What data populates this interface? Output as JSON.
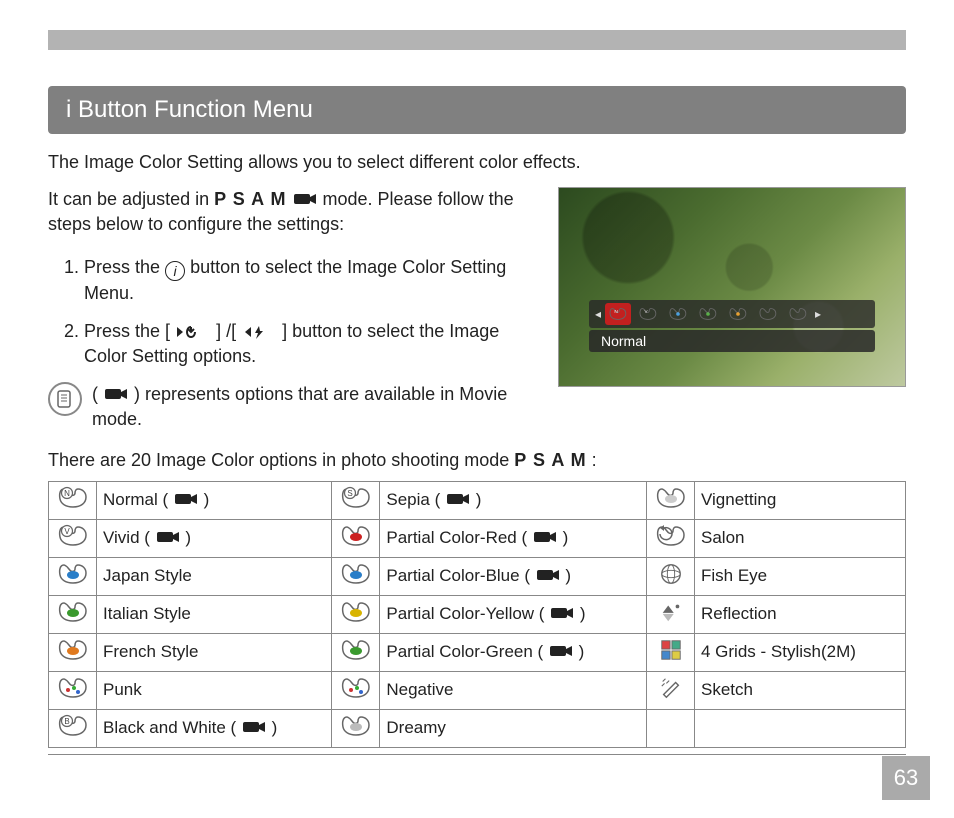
{
  "header": {
    "section_title": "i Button Function Menu"
  },
  "intro": {
    "line": "The Image Color Setting allows you to select different color effects."
  },
  "body": {
    "adjust_pre": "It can be adjusted in ",
    "adjust_modes": "P S A M",
    "adjust_post": " mode. Please follow the steps below to configure the settings:",
    "step1_pre": "Press the ",
    "step1_post": " button to select the Image Color Setting Menu.",
    "step2_pre": "Press the [",
    "step2_mid": "] /[",
    "step2_post": "] button to select the Image Color Setting options.",
    "note_pre": "( ",
    "note_post": " ) represents options that are available in Movie mode."
  },
  "screenshot": {
    "label": "Normal"
  },
  "options_intro": {
    "pre": "There are 20 Image Color options in photo shooting mode ",
    "modes": "P S A M",
    "post": " :"
  },
  "table": {
    "rows": [
      [
        "Normal",
        "Sepia",
        "Vignetting"
      ],
      [
        "Vivid",
        "Partial Color-Red",
        "Salon"
      ],
      [
        "Japan Style",
        "Partial Color-Blue",
        "Fish Eye"
      ],
      [
        "Italian Style",
        "Partial Color-Yellow",
        "Reflection"
      ],
      [
        "French Style",
        "Partial Color-Green",
        "4 Grids - Stylish(2M)"
      ],
      [
        "Punk",
        "Negative",
        "Sketch"
      ],
      [
        "Black and White",
        "Dreamy",
        ""
      ]
    ],
    "movie_flags": [
      [
        true,
        true,
        false
      ],
      [
        true,
        true,
        false
      ],
      [
        false,
        true,
        false
      ],
      [
        false,
        true,
        false
      ],
      [
        false,
        true,
        false
      ],
      [
        false,
        false,
        false
      ],
      [
        true,
        false,
        false
      ]
    ],
    "icon_kind": [
      [
        "palette-n",
        "palette-s",
        "palette-plain"
      ],
      [
        "palette-v",
        "palette-red",
        "palette-cycle"
      ],
      [
        "palette-blue",
        "palette-blue2",
        "fisheye"
      ],
      [
        "palette-green",
        "palette-yellow",
        "reflection"
      ],
      [
        "palette-orange",
        "palette-green2",
        "grids"
      ],
      [
        "palette-dots",
        "palette-neg",
        "sketch"
      ],
      [
        "palette-b",
        "palette-grey",
        ""
      ]
    ],
    "icon_colors": {
      "palette-n": "#888",
      "palette-s": "#888",
      "palette-plain": "#ccc",
      "palette-v": "#888",
      "palette-red": "#c22",
      "palette-cycle": "#888",
      "palette-blue": "#2a7ec8",
      "palette-blue2": "#2a7ec8",
      "fisheye": "#888",
      "palette-green": "#3a9a2e",
      "palette-yellow": "#d8b400",
      "reflection": "#888",
      "palette-orange": "#e07a1f",
      "palette-green2": "#3a9a2e",
      "grids": "#888",
      "palette-dots": "#888",
      "palette-neg": "#888",
      "sketch": "#888",
      "palette-b": "#888",
      "palette-grey": "#bbb"
    }
  },
  "page_number": "63",
  "style": {
    "section_bg": "#808080",
    "section_fg": "#ffffff",
    "top_bar": "#b3b3b3",
    "border": "#888888",
    "text": "#222222",
    "page_num_bg": "#aaaaaa",
    "strip_selected": "#c2201f",
    "body_fontsize": 18,
    "title_fontsize": 24,
    "table_fontsize": 17
  }
}
